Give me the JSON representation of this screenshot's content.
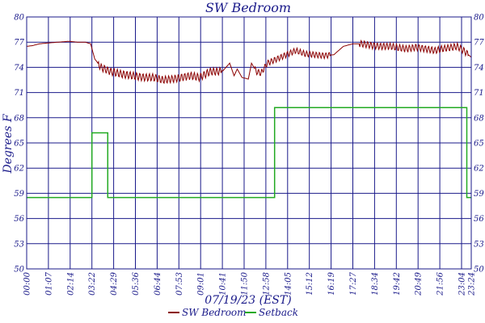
{
  "chart_data": {
    "type": "line",
    "title": "SW Bedroom",
    "xlabel": "07/19/23 (EST)",
    "ylabel": "Degrees F",
    "x_unit": "minutes",
    "xlim": [
      0,
      1404
    ],
    "ylim": [
      50,
      80
    ],
    "y_ticks_left": [
      "50",
      "53",
      "56",
      "59",
      "62",
      "65",
      "68",
      "71",
      "74",
      "77",
      "80"
    ],
    "y_ticks_right": [
      "50",
      "53",
      "56",
      "59",
      "62",
      "65",
      "68",
      "71",
      "74",
      "77",
      "80"
    ],
    "x_tick_labels": [
      "00:00",
      "01:07",
      "02:14",
      "03:22",
      "04:29",
      "05:36",
      "06:44",
      "07:53",
      "09:01",
      "10:41",
      "11:50",
      "12:58",
      "14:05",
      "15:12",
      "16:19",
      "17:27",
      "18:34",
      "19:42",
      "20:49",
      "21:56",
      "23:04",
      "23:24"
    ],
    "grid": true,
    "legend_position": "bottom-center",
    "series": [
      {
        "name": "SW Bedroom",
        "color": "#8b0000",
        "x": [
          0,
          20,
          40,
          67,
          100,
          134,
          160,
          185,
          202,
          215,
          235,
          265,
          300,
          335,
          370,
          400,
          430,
          460,
          490,
          520,
          545,
          565,
          580,
          600,
          620,
          641,
          655,
          665,
          680,
          700,
          710,
          725,
          740,
          760,
          790,
          820,
          850,
          880,
          910,
          940,
          970,
          1000,
          1030,
          1060,
          1090,
          1120,
          1150,
          1180,
          1200,
          1230,
          1260,
          1290,
          1310,
          1330,
          1360,
          1380,
          1404
        ],
        "values": [
          76.5,
          76.6,
          76.8,
          76.9,
          77,
          77.1,
          77,
          77,
          76.8,
          75,
          74,
          73.5,
          73.2,
          73,
          72.8,
          72.8,
          72.5,
          72.6,
          72.8,
          73,
          72.8,
          73.2,
          73.5,
          73.5,
          73.6,
          74.5,
          73,
          73.8,
          72.8,
          72.6,
          74.5,
          73.5,
          73.3,
          74.5,
          75,
          75.5,
          76,
          75.6,
          75.5,
          75.4,
          75.5,
          76.5,
          76.8,
          76.8,
          76.6,
          76.5,
          76.5,
          76.3,
          76.2,
          76.4,
          76.2,
          76,
          76.2,
          76.3,
          76.5,
          76,
          75.2
        ]
      },
      {
        "name": "Setback",
        "color": "#22aa22",
        "x": [
          0,
          222,
          222,
          262,
          262,
          300,
          300,
          520,
          520,
          539,
          539,
          1000,
          1000,
          1390,
          1390,
          1404
        ],
        "values": [
          58.5,
          58.5,
          58.5,
          58.5,
          58.5,
          58.5,
          58.5,
          58.5,
          58.5,
          58.5,
          58.5,
          58.5,
          58.5,
          58.5,
          58.5,
          58.5
        ],
        "step_x": [
          0,
          206,
          206,
          256,
          256,
          524,
          524,
          783,
          783,
          1390,
          1390,
          1404
        ],
        "step_y": [
          58.5,
          58.5,
          66.2,
          66.2,
          58.5,
          58.5,
          58.5,
          58.5,
          69.2,
          69.2,
          58.5,
          58.5
        ]
      }
    ],
    "colors": {
      "grid": "#1a1a8a",
      "frame": "#1a1a8a",
      "text": "#1a1a8a"
    }
  }
}
